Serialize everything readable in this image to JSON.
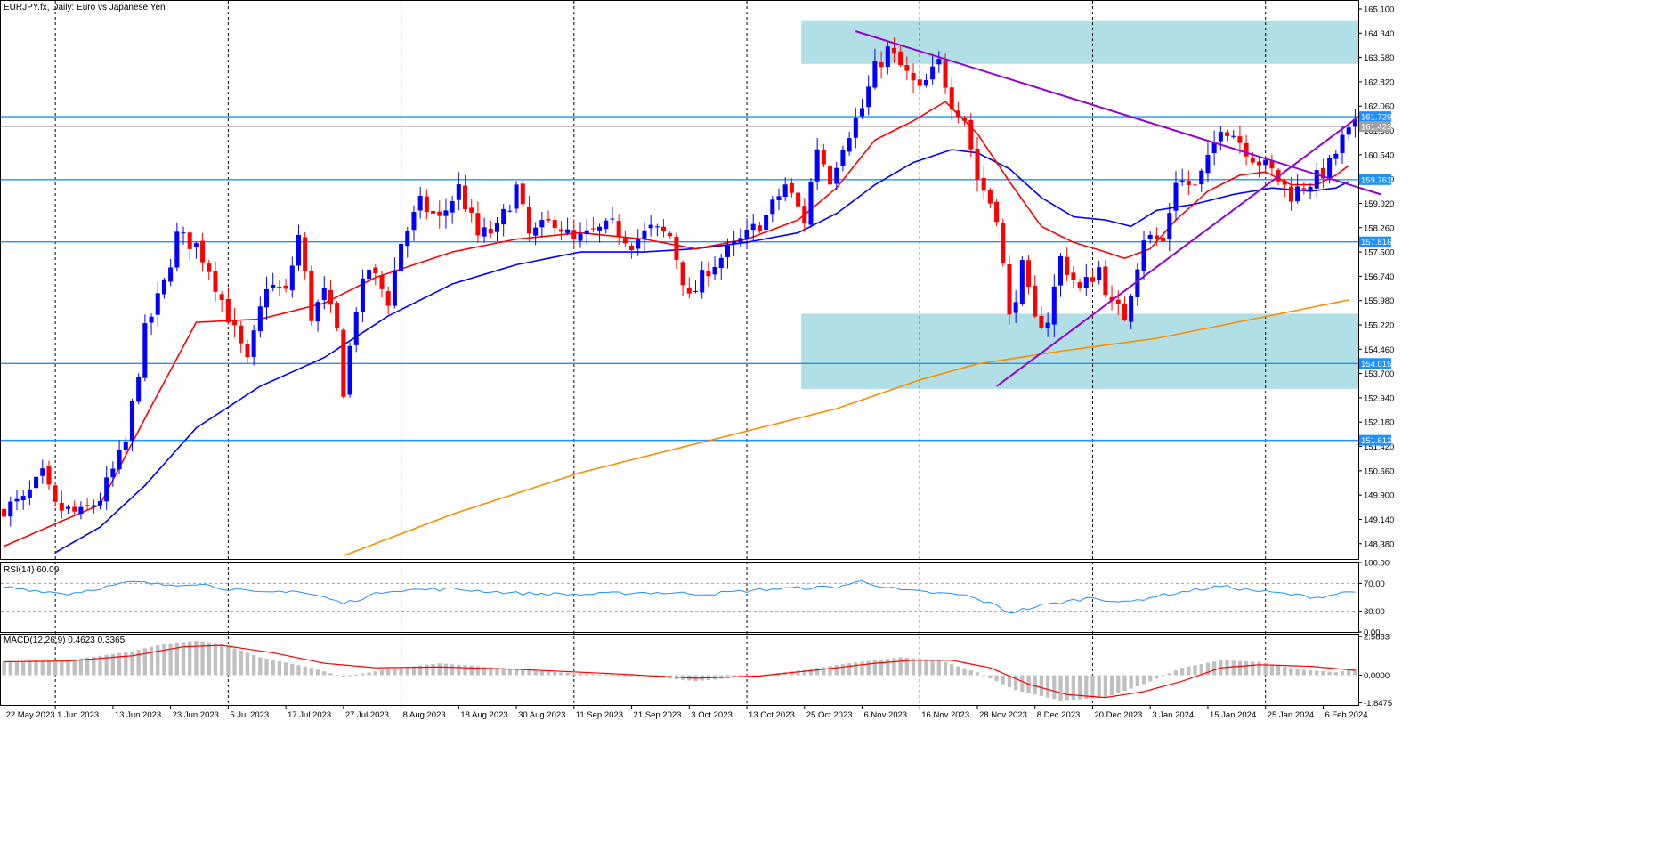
{
  "header": {
    "title": "EURJPY.fx, Daily:  Euro vs Japanese Yen"
  },
  "colors": {
    "bull": "#0000ff",
    "bear": "#ff0000",
    "ma_fast": "#ff0000",
    "ma_mid": "#0000ff",
    "ma_slow": "#ff8c00",
    "zone": "#b0e0e6",
    "level_line": "#1e90ff",
    "trend": "#9400d3",
    "rsi": "#1e90ff",
    "macd_hist": "#c0c0c0",
    "macd_signal": "#ff0000",
    "grid": "#000000"
  },
  "chart_data": [
    {
      "type": "candlestick",
      "symbol": "EURJPY.fx",
      "timeframe": "Daily",
      "ylim": [
        147.9,
        165.35
      ],
      "y_ticks": [
        "165.100",
        "164.340",
        "163.580",
        "162.820",
        "162.060",
        "161.300",
        "160.540",
        "159.780",
        "159.020",
        "158.260",
        "157.500",
        "156.740",
        "155.980",
        "155.220",
        "154.460",
        "153.700",
        "152.940",
        "152.180",
        "151.420",
        "150.660",
        "149.900",
        "149.140",
        "148.380"
      ],
      "x_ticks": [
        "22 May 2023",
        "1 Jun 2023",
        "13 Jun 2023",
        "23 Jun 2023",
        "5 Jul 2023",
        "17 Jul 2023",
        "27 Jul 2023",
        "8 Aug 2023",
        "18 Aug 2023",
        "30 Aug 2023",
        "11 Sep 2023",
        "21 Sep 2023",
        "3 Oct 2023",
        "13 Oct 2023",
        "25 Oct 2023",
        "6 Nov 2023",
        "16 Nov 2023",
        "28 Nov 2023",
        "8 Dec 2023",
        "20 Dec 2023",
        "3 Jan 2024",
        "15 Jan 2024",
        "25 Jan 2024",
        "6 Feb 2024"
      ],
      "x_tick_index": [
        0,
        8,
        17,
        26,
        35,
        44,
        53,
        62,
        71,
        80,
        89,
        98,
        107,
        116,
        125,
        134,
        143,
        152,
        161,
        170,
        179,
        188,
        197,
        206
      ],
      "n_bars": 212,
      "anchors": [
        [
          0,
          149.5
        ],
        [
          3,
          149.7
        ],
        [
          6,
          150.5
        ],
        [
          8,
          149.5
        ],
        [
          12,
          149.3
        ],
        [
          15,
          149.8
        ],
        [
          19,
          151.5
        ],
        [
          22,
          155.0
        ],
        [
          25,
          156.5
        ],
        [
          27,
          158.0
        ],
        [
          30,
          157.7
        ],
        [
          32,
          157.0
        ],
        [
          35,
          155.5
        ],
        [
          38,
          154.0
        ],
        [
          41,
          156.5
        ],
        [
          44,
          156.2
        ],
        [
          46,
          158.0
        ],
        [
          48,
          155.5
        ],
        [
          50,
          156.2
        ],
        [
          52,
          155.0
        ],
        [
          53,
          153.2
        ],
        [
          55,
          155.8
        ],
        [
          57,
          157.0
        ],
        [
          60,
          156.0
        ],
        [
          62,
          157.8
        ],
        [
          65,
          159.0
        ],
        [
          68,
          158.5
        ],
        [
          71,
          159.5
        ],
        [
          74,
          158.0
        ],
        [
          77,
          158.2
        ],
        [
          80,
          159.5
        ],
        [
          82,
          158.0
        ],
        [
          86,
          158.5
        ],
        [
          89,
          157.8
        ],
        [
          92,
          158.1
        ],
        [
          95,
          158.3
        ],
        [
          98,
          157.8
        ],
        [
          101,
          158.2
        ],
        [
          104,
          158.0
        ],
        [
          107,
          156.0
        ],
        [
          110,
          157.0
        ],
        [
          113,
          157.5
        ],
        [
          116,
          158.0
        ],
        [
          119,
          158.6
        ],
        [
          122,
          159.6
        ],
        [
          125,
          158.5
        ],
        [
          127,
          160.8
        ],
        [
          129,
          159.8
        ],
        [
          131,
          160.9
        ],
        [
          134,
          162.0
        ],
        [
          136,
          163.2
        ],
        [
          138,
          163.8
        ],
        [
          140,
          163.3
        ],
        [
          143,
          162.5
        ],
        [
          146,
          163.4
        ],
        [
          148,
          162.2
        ],
        [
          150,
          161.7
        ],
        [
          152,
          159.8
        ],
        [
          155,
          158.7
        ],
        [
          157,
          155.4
        ],
        [
          159,
          157.0
        ],
        [
          161,
          155.3
        ],
        [
          163,
          155.4
        ],
        [
          165,
          157.3
        ],
        [
          168,
          156.3
        ],
        [
          171,
          157.0
        ],
        [
          173,
          155.8
        ],
        [
          175,
          155.5
        ],
        [
          178,
          158.0
        ],
        [
          181,
          157.8
        ],
        [
          183,
          159.8
        ],
        [
          186,
          159.5
        ],
        [
          188,
          160.3
        ],
        [
          190,
          161.5
        ],
        [
          192,
          161.2
        ],
        [
          195,
          160.5
        ],
        [
          198,
          160.0
        ],
        [
          201,
          159.3
        ],
        [
          203,
          159.6
        ],
        [
          205,
          159.8
        ],
        [
          207,
          160.2
        ],
        [
          209,
          161.0
        ],
        [
          211,
          161.4
        ]
      ],
      "ma_fast_anchors": [
        [
          0,
          148.3
        ],
        [
          8,
          149.0
        ],
        [
          15,
          149.6
        ],
        [
          22,
          152.3
        ],
        [
          30,
          155.3
        ],
        [
          40,
          155.4
        ],
        [
          50,
          155.9
        ],
        [
          58,
          156.7
        ],
        [
          70,
          157.5
        ],
        [
          80,
          157.9
        ],
        [
          90,
          158.1
        ],
        [
          100,
          157.9
        ],
        [
          108,
          157.6
        ],
        [
          116,
          157.9
        ],
        [
          124,
          158.5
        ],
        [
          130,
          159.5
        ],
        [
          136,
          161.0
        ],
        [
          142,
          161.6
        ],
        [
          147,
          162.2
        ],
        [
          152,
          161.2
        ],
        [
          157,
          159.7
        ],
        [
          162,
          158.3
        ],
        [
          167,
          157.8
        ],
        [
          172,
          157.5
        ],
        [
          175,
          157.3
        ],
        [
          179,
          157.6
        ],
        [
          183,
          158.5
        ],
        [
          188,
          159.4
        ],
        [
          193,
          159.9
        ],
        [
          197,
          160.0
        ],
        [
          201,
          159.6
        ],
        [
          205,
          159.6
        ],
        [
          208,
          159.9
        ],
        [
          210,
          160.2
        ]
      ],
      "ma_mid_anchors": [
        [
          8,
          148.1
        ],
        [
          15,
          148.9
        ],
        [
          22,
          150.2
        ],
        [
          30,
          152.0
        ],
        [
          40,
          153.3
        ],
        [
          50,
          154.2
        ],
        [
          60,
          155.5
        ],
        [
          70,
          156.5
        ],
        [
          80,
          157.1
        ],
        [
          90,
          157.5
        ],
        [
          100,
          157.5
        ],
        [
          108,
          157.6
        ],
        [
          116,
          157.8
        ],
        [
          124,
          158.1
        ],
        [
          130,
          158.7
        ],
        [
          136,
          159.6
        ],
        [
          142,
          160.3
        ],
        [
          148,
          160.7
        ],
        [
          152,
          160.6
        ],
        [
          157,
          160.1
        ],
        [
          162,
          159.2
        ],
        [
          167,
          158.6
        ],
        [
          172,
          158.5
        ],
        [
          176,
          158.3
        ],
        [
          180,
          158.8
        ],
        [
          186,
          159.0
        ],
        [
          192,
          159.3
        ],
        [
          198,
          159.5
        ],
        [
          204,
          159.4
        ],
        [
          208,
          159.5
        ],
        [
          210,
          159.7
        ]
      ],
      "ma_slow_anchors": [
        [
          53,
          148.0
        ],
        [
          70,
          149.3
        ],
        [
          90,
          150.6
        ],
        [
          110,
          151.6
        ],
        [
          130,
          152.6
        ],
        [
          143,
          153.5
        ],
        [
          152,
          154.0
        ],
        [
          165,
          154.4
        ],
        [
          180,
          154.8
        ],
        [
          195,
          155.4
        ],
        [
          210,
          156.0
        ]
      ],
      "levels": [
        161.729,
        159.761,
        157.816,
        154.015,
        151.612
      ],
      "current_price": 161.423,
      "zones": [
        {
          "from_index": 125,
          "to_index": 211,
          "low": 163.38,
          "high": 164.72
        },
        {
          "from_index": 125,
          "to_index": 211,
          "low": 153.22,
          "high": 155.57
        }
      ],
      "trendlines": [
        {
          "from": [
            133,
            164.4
          ],
          "to": [
            215,
            159.3
          ]
        },
        {
          "from": [
            155,
            153.3
          ],
          "to": [
            212,
            161.8
          ]
        }
      ]
    },
    {
      "type": "line",
      "indicator": "RSI(14) 60.09",
      "ylim": [
        0,
        100
      ],
      "y_ticks": [
        "100.00",
        "70.00",
        "30.00",
        "0.00"
      ],
      "levels": [
        70,
        30
      ],
      "anchors": [
        [
          0,
          65
        ],
        [
          10,
          55
        ],
        [
          20,
          72
        ],
        [
          25,
          68
        ],
        [
          30,
          70
        ],
        [
          35,
          62
        ],
        [
          40,
          56
        ],
        [
          45,
          60
        ],
        [
          50,
          50
        ],
        [
          53,
          41
        ],
        [
          60,
          60
        ],
        [
          70,
          62
        ],
        [
          80,
          56
        ],
        [
          90,
          54
        ],
        [
          100,
          57
        ],
        [
          110,
          55
        ],
        [
          120,
          62
        ],
        [
          130,
          65
        ],
        [
          134,
          73
        ],
        [
          140,
          60
        ],
        [
          150,
          53
        ],
        [
          155,
          38
        ],
        [
          157,
          28
        ],
        [
          162,
          38
        ],
        [
          170,
          50
        ],
        [
          175,
          42
        ],
        [
          180,
          52
        ],
        [
          190,
          66
        ],
        [
          195,
          60
        ],
        [
          200,
          55
        ],
        [
          205,
          50
        ],
        [
          210,
          58
        ],
        [
          211,
          60
        ]
      ]
    },
    {
      "type": "bar",
      "indicator": "MACD(12,26,9) 0.4623 0.3365",
      "ylim": [
        -2.0,
        2.72
      ],
      "y_ticks": [
        "2.5883",
        "0.0000",
        "-1.8475"
      ],
      "hist_anchors": [
        [
          0,
          0.9
        ],
        [
          10,
          1.0
        ],
        [
          20,
          1.6
        ],
        [
          25,
          2.1
        ],
        [
          30,
          2.3
        ],
        [
          34,
          2.1
        ],
        [
          40,
          1.2
        ],
        [
          48,
          0.5
        ],
        [
          53,
          -0.1
        ],
        [
          60,
          0.4
        ],
        [
          68,
          0.8
        ],
        [
          80,
          0.4
        ],
        [
          90,
          0.1
        ],
        [
          100,
          -0.05
        ],
        [
          108,
          -0.4
        ],
        [
          116,
          -0.1
        ],
        [
          124,
          0.3
        ],
        [
          132,
          0.8
        ],
        [
          140,
          1.2
        ],
        [
          146,
          1.0
        ],
        [
          152,
          0.2
        ],
        [
          158,
          -1.0
        ],
        [
          165,
          -1.7
        ],
        [
          172,
          -1.5
        ],
        [
          178,
          -0.6
        ],
        [
          184,
          0.5
        ],
        [
          190,
          1.0
        ],
        [
          196,
          0.9
        ],
        [
          202,
          0.4
        ],
        [
          208,
          0.2
        ],
        [
          211,
          0.4
        ]
      ],
      "signal_anchors": [
        [
          0,
          0.9
        ],
        [
          10,
          0.95
        ],
        [
          20,
          1.3
        ],
        [
          28,
          1.9
        ],
        [
          34,
          2.0
        ],
        [
          42,
          1.5
        ],
        [
          50,
          0.8
        ],
        [
          58,
          0.5
        ],
        [
          68,
          0.55
        ],
        [
          80,
          0.4
        ],
        [
          95,
          0.1
        ],
        [
          108,
          -0.2
        ],
        [
          118,
          -0.05
        ],
        [
          128,
          0.4
        ],
        [
          136,
          0.8
        ],
        [
          142,
          1.0
        ],
        [
          148,
          1.0
        ],
        [
          154,
          0.5
        ],
        [
          160,
          -0.6
        ],
        [
          166,
          -1.3
        ],
        [
          172,
          -1.5
        ],
        [
          178,
          -1.1
        ],
        [
          184,
          -0.4
        ],
        [
          190,
          0.5
        ],
        [
          196,
          0.7
        ],
        [
          204,
          0.6
        ],
        [
          211,
          0.33
        ]
      ]
    }
  ]
}
